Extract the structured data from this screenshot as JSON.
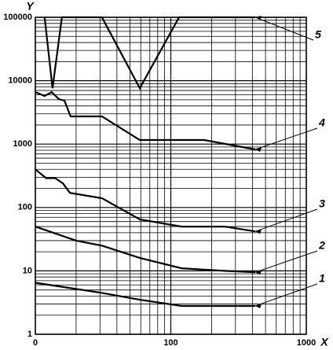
{
  "chart_data": {
    "type": "line",
    "xlabel": "X",
    "ylabel": "Y",
    "xscale": "log",
    "yscale": "log",
    "xlim": [
      10,
      1000
    ],
    "ylim": [
      1,
      100000
    ],
    "xticks": [
      {
        "value": 10,
        "label": "0"
      },
      100,
      1000
    ],
    "yticks": [
      1,
      10,
      100,
      1000,
      10000,
      100000
    ],
    "grid": true,
    "minor_grid": true,
    "series": [
      {
        "name": "1",
        "color": "#000000",
        "x": [
          10,
          31,
          59,
          120,
          250,
          420
        ],
        "values": [
          6.5,
          4.5,
          3.5,
          2.8,
          2.8,
          2.8
        ]
      },
      {
        "name": "2",
        "color": "#000000",
        "x": [
          10,
          20,
          31,
          59,
          120,
          250,
          420
        ],
        "values": [
          50,
          30,
          25,
          16,
          11,
          10,
          9.5
        ]
      },
      {
        "name": "3",
        "color": "#000000",
        "x": [
          10,
          12,
          14,
          16,
          18,
          31,
          59,
          120,
          250,
          420
        ],
        "values": [
          400,
          290,
          290,
          240,
          170,
          140,
          65,
          50,
          50,
          42
        ]
      },
      {
        "name": "4",
        "color": "#000000",
        "x": [
          10,
          11.7,
          13.2,
          14.9,
          16.4,
          18.2,
          31,
          59,
          176,
          420
        ],
        "values": [
          6600,
          5750,
          6600,
          5130,
          4840,
          2730,
          2730,
          1160,
          1160,
          824
        ]
      },
      {
        "name": "5",
        "color": "#000000",
        "x": [
          11.7,
          13.4,
          15.7,
          31,
          59,
          115,
          420
        ],
        "values": [
          100000,
          7600,
          100000,
          100000,
          7600,
          100000,
          100000
        ]
      }
    ]
  }
}
